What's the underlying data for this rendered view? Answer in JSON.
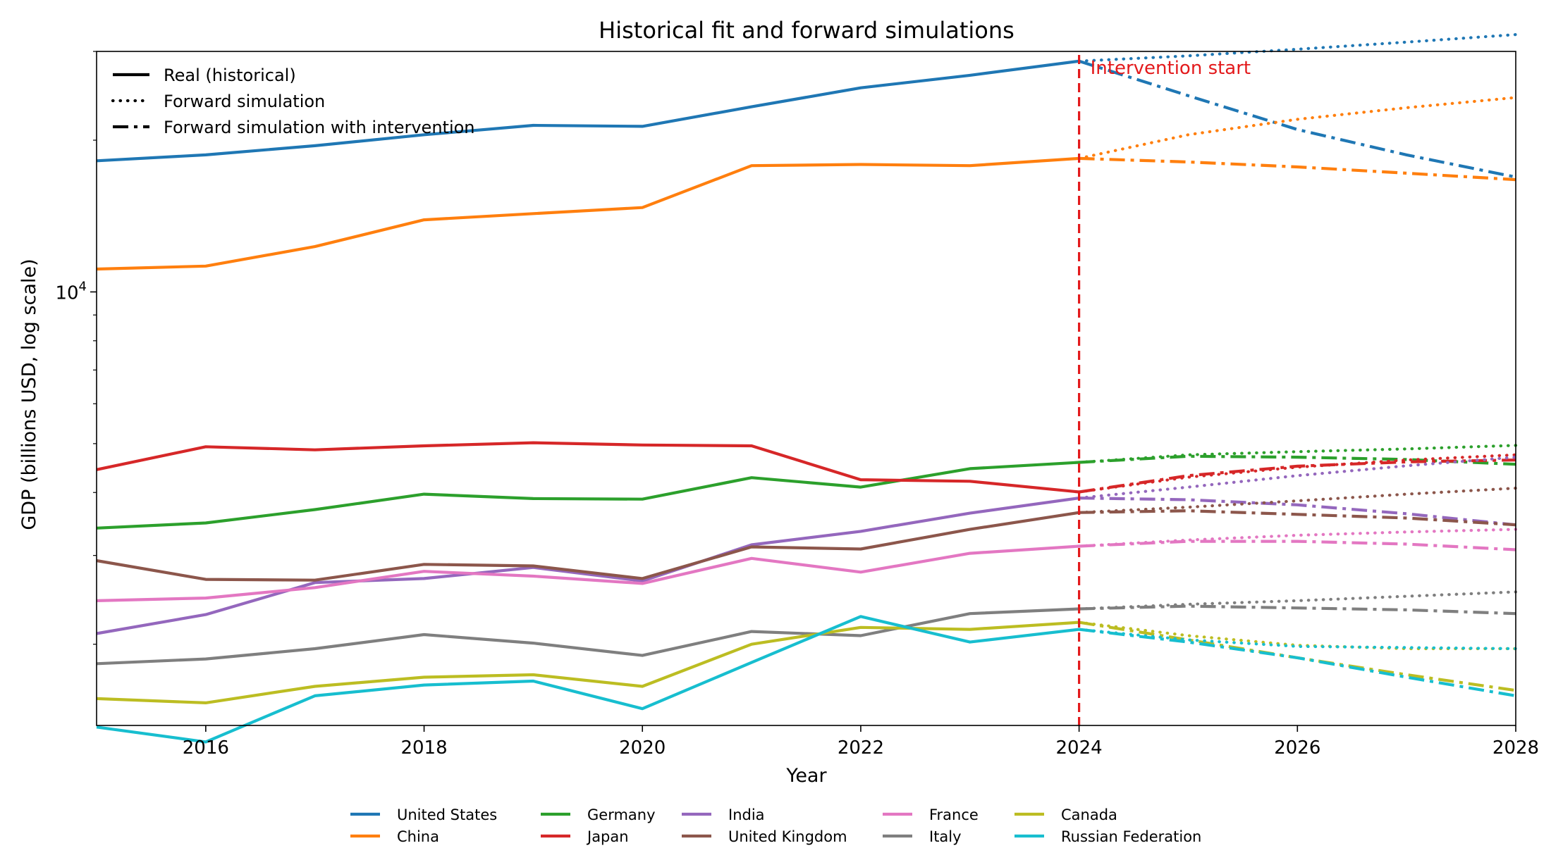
{
  "chart_data": {
    "type": "line",
    "title": "Historical fit and forward simulations",
    "xlabel": "Year",
    "ylabel": "GDP (billions USD, log scale)",
    "yscale": "log",
    "xlim": [
      2015,
      2028
    ],
    "ylim": [
      1380,
      30000
    ],
    "x_ticks": [
      2016,
      2018,
      2020,
      2022,
      2024,
      2026,
      2028
    ],
    "y_major_ticks": [
      {
        "value": 10000,
        "base": "10",
        "exp": "4"
      }
    ],
    "y_minor_ticks": [
      2000,
      3000,
      4000,
      5000,
      6000,
      7000,
      8000,
      9000,
      20000,
      30000
    ],
    "intervention": {
      "x": 2024,
      "label": "Intervention start",
      "color": "#e31a1c"
    },
    "style_legend": {
      "position": "top-left",
      "entries": [
        {
          "label": "Real (historical)",
          "style": "solid"
        },
        {
          "label": "Forward simulation",
          "style": "dotted"
        },
        {
          "label": "Forward simulation with intervention",
          "style": "dashdot"
        }
      ]
    },
    "series_legend_position": "bottom-center",
    "series": [
      {
        "name": "United States",
        "color": "#1f77b4",
        "historical": {
          "x": [
            2015,
            2016,
            2017,
            2018,
            2019,
            2020,
            2021,
            2022,
            2023,
            2024
          ],
          "y": [
            18200,
            18700,
            19500,
            20500,
            21400,
            21300,
            23300,
            25400,
            26900,
            28700
          ]
        },
        "forward": {
          "x": [
            2024,
            2025,
            2026,
            2027,
            2028
          ],
          "y": [
            28700,
            29400,
            30300,
            31300,
            32400
          ]
        },
        "intervention": {
          "x": [
            2024,
            2025,
            2026,
            2027,
            2028
          ],
          "y": [
            28700,
            24500,
            21000,
            18700,
            16900
          ]
        }
      },
      {
        "name": "China",
        "color": "#ff7f0e",
        "historical": {
          "x": [
            2015,
            2016,
            2017,
            2018,
            2019,
            2020,
            2021,
            2022,
            2023,
            2024
          ],
          "y": [
            11100,
            11250,
            12300,
            13900,
            14300,
            14700,
            17800,
            17900,
            17800,
            18400
          ]
        },
        "forward": {
          "x": [
            2024,
            2025,
            2026,
            2027,
            2028
          ],
          "y": [
            18400,
            20500,
            22000,
            23200,
            24300
          ]
        },
        "intervention": {
          "x": [
            2024,
            2025,
            2026,
            2027,
            2028
          ],
          "y": [
            18400,
            18100,
            17700,
            17200,
            16700
          ]
        }
      },
      {
        "name": "Germany",
        "color": "#2ca02c",
        "historical": {
          "x": [
            2015,
            2016,
            2017,
            2018,
            2019,
            2020,
            2021,
            2022,
            2023,
            2024
          ],
          "y": [
            3400,
            3480,
            3700,
            3970,
            3890,
            3880,
            4280,
            4100,
            4460,
            4590
          ]
        },
        "forward": {
          "x": [
            2024,
            2025,
            2026,
            2027,
            2028
          ],
          "y": [
            4590,
            4750,
            4820,
            4880,
            4960
          ]
        },
        "intervention": {
          "x": [
            2024,
            2025,
            2026,
            2027,
            2028
          ],
          "y": [
            4590,
            4720,
            4700,
            4650,
            4550
          ]
        }
      },
      {
        "name": "Japan",
        "color": "#d62728",
        "historical": {
          "x": [
            2015,
            2016,
            2017,
            2018,
            2019,
            2020,
            2021,
            2022,
            2023,
            2024
          ],
          "y": [
            4440,
            4930,
            4860,
            4950,
            5020,
            4970,
            4950,
            4240,
            4210,
            4010
          ]
        },
        "forward": {
          "x": [
            2024,
            2025,
            2026,
            2027,
            2028
          ],
          "y": [
            4010,
            4290,
            4490,
            4640,
            4750
          ]
        },
        "intervention": {
          "x": [
            2024,
            2025,
            2026,
            2027,
            2028
          ],
          "y": [
            4010,
            4320,
            4510,
            4600,
            4640
          ]
        }
      },
      {
        "name": "India",
        "color": "#9467bd",
        "historical": {
          "x": [
            2015,
            2016,
            2017,
            2018,
            2019,
            2020,
            2021,
            2022,
            2023,
            2024
          ],
          "y": [
            2100,
            2290,
            2650,
            2700,
            2840,
            2670,
            3150,
            3350,
            3640,
            3900
          ]
        },
        "forward": {
          "x": [
            2024,
            2025,
            2026,
            2027,
            2028
          ],
          "y": [
            3900,
            4100,
            4320,
            4520,
            4700
          ]
        },
        "intervention": {
          "x": [
            2024,
            2025,
            2026,
            2027,
            2028
          ],
          "y": [
            3900,
            3870,
            3780,
            3630,
            3450
          ]
        }
      },
      {
        "name": "United Kingdom",
        "color": "#8c564b",
        "historical": {
          "x": [
            2015,
            2016,
            2017,
            2018,
            2019,
            2020,
            2021,
            2022,
            2023,
            2024
          ],
          "y": [
            2930,
            2690,
            2680,
            2880,
            2860,
            2700,
            3120,
            3090,
            3380,
            3650
          ]
        },
        "forward": {
          "x": [
            2024,
            2025,
            2026,
            2027,
            2028
          ],
          "y": [
            3650,
            3740,
            3850,
            3970,
            4080
          ]
        },
        "intervention": {
          "x": [
            2024,
            2025,
            2026,
            2027,
            2028
          ],
          "y": [
            3650,
            3680,
            3620,
            3560,
            3450
          ]
        }
      },
      {
        "name": "France",
        "color": "#e377c2",
        "historical": {
          "x": [
            2015,
            2016,
            2017,
            2018,
            2019,
            2020,
            2021,
            2022,
            2023,
            2024
          ],
          "y": [
            2440,
            2470,
            2590,
            2790,
            2730,
            2640,
            2960,
            2780,
            3030,
            3130
          ]
        },
        "forward": {
          "x": [
            2024,
            2025,
            2026,
            2027,
            2028
          ],
          "y": [
            3130,
            3220,
            3290,
            3340,
            3380
          ]
        },
        "intervention": {
          "x": [
            2024,
            2025,
            2026,
            2027,
            2028
          ],
          "y": [
            3130,
            3200,
            3200,
            3160,
            3080
          ]
        }
      },
      {
        "name": "Italy",
        "color": "#7f7f7f",
        "historical": {
          "x": [
            2015,
            2016,
            2017,
            2018,
            2019,
            2020,
            2021,
            2022,
            2023,
            2024
          ],
          "y": [
            1830,
            1870,
            1960,
            2090,
            2010,
            1900,
            2120,
            2080,
            2300,
            2350
          ]
        },
        "forward": {
          "x": [
            2024,
            2025,
            2026,
            2027,
            2028
          ],
          "y": [
            2350,
            2400,
            2440,
            2490,
            2540
          ]
        },
        "intervention": {
          "x": [
            2024,
            2025,
            2026,
            2027,
            2028
          ],
          "y": [
            2350,
            2380,
            2360,
            2340,
            2300
          ]
        }
      },
      {
        "name": "Canada",
        "color": "#bcbd22",
        "historical": {
          "x": [
            2015,
            2016,
            2017,
            2018,
            2019,
            2020,
            2021,
            2022,
            2023,
            2024
          ],
          "y": [
            1560,
            1530,
            1650,
            1720,
            1740,
            1650,
            2000,
            2160,
            2140,
            2210
          ]
        },
        "forward": {
          "x": [
            2024,
            2025,
            2026,
            2027,
            2028
          ],
          "y": [
            2210,
            2080,
            1990,
            1960,
            1960
          ]
        },
        "intervention": {
          "x": [
            2024,
            2025,
            2026,
            2027,
            2028
          ],
          "y": [
            2210,
            2040,
            1880,
            1740,
            1620
          ]
        }
      },
      {
        "name": "Russian Federation",
        "color": "#17becf",
        "historical": {
          "x": [
            2015,
            2016,
            2017,
            2018,
            2019,
            2020,
            2021,
            2022,
            2023,
            2024
          ],
          "y": [
            1370,
            1280,
            1580,
            1660,
            1690,
            1490,
            1840,
            2270,
            2020,
            2140
          ]
        },
        "forward": {
          "x": [
            2024,
            2025,
            2026,
            2027,
            2028
          ],
          "y": [
            2140,
            2040,
            1980,
            1970,
            1960
          ]
        },
        "intervention": {
          "x": [
            2024,
            2025,
            2026,
            2027,
            2028
          ],
          "y": [
            2140,
            2020,
            1880,
            1720,
            1580
          ]
        }
      }
    ]
  }
}
